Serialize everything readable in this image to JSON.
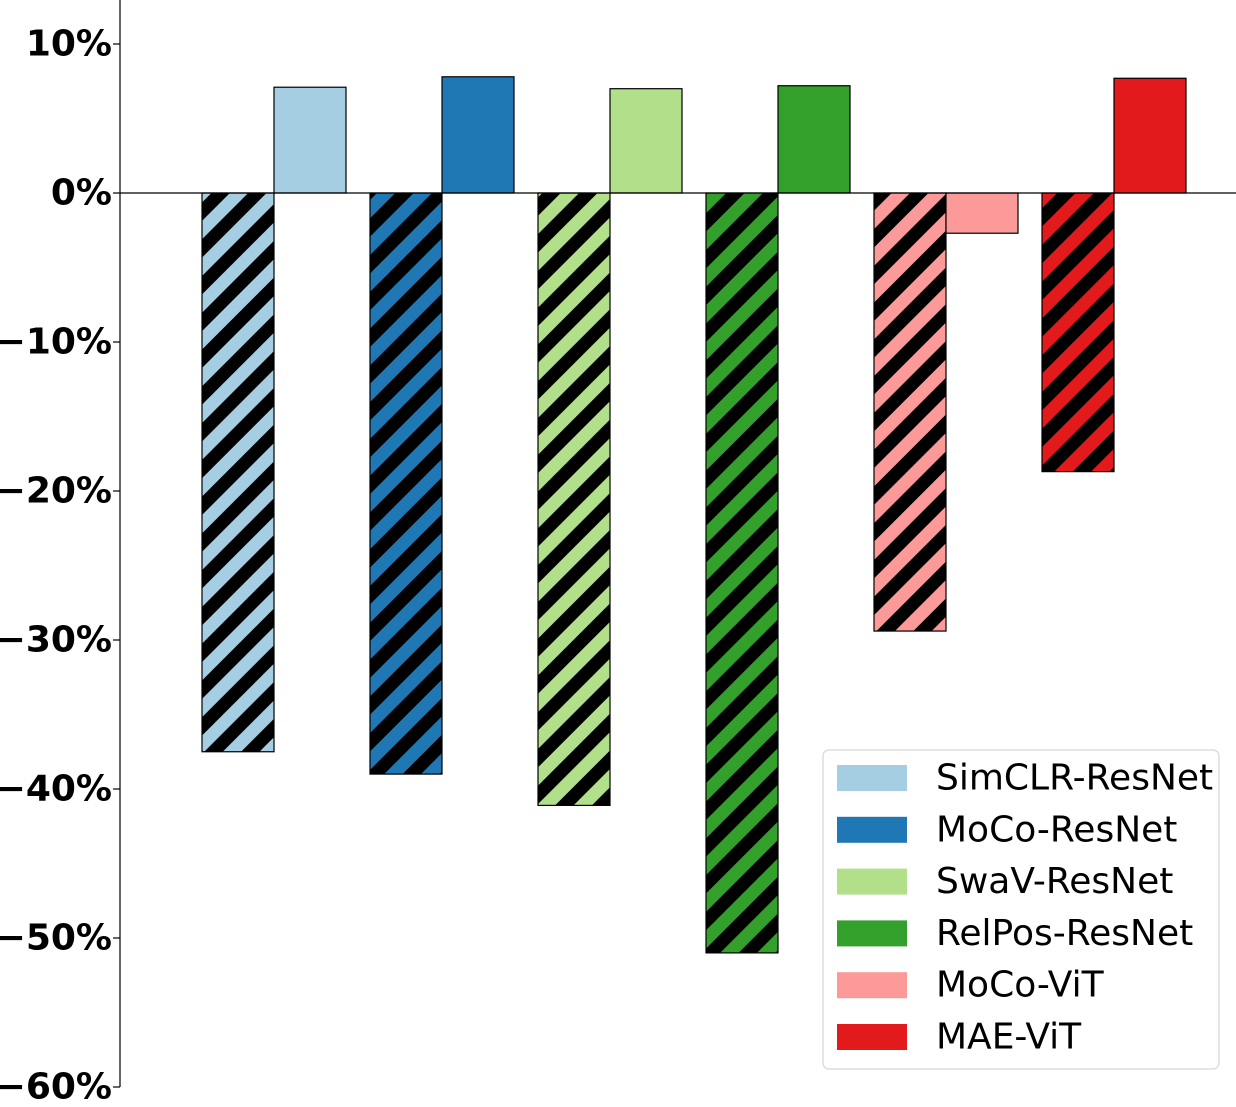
{
  "chart_data": {
    "type": "bar",
    "y_unit": "%",
    "ylim": [
      -60,
      13
    ],
    "y_ticks": [
      10,
      0,
      -10,
      -20,
      -30,
      -40,
      -50,
      -60
    ],
    "y_tick_labels": [
      "10%",
      "0%",
      "−10%",
      "−20%",
      "−30%",
      "−40%",
      "−50%",
      "−60%"
    ],
    "grid": false,
    "legend_placement": "bottom-right",
    "categories": [
      "SimCLR-ResNet",
      "MoCo-ResNet",
      "SwaV-ResNet",
      "RelPos-ResNet",
      "MoCo-ViT",
      "MAE-ViT"
    ],
    "colors": [
      "#a6cee3",
      "#1f78b4",
      "#b2df8a",
      "#33a02c",
      "#fb9a99",
      "#e31a1c"
    ],
    "series": [
      {
        "style": "hatched",
        "values": [
          -37.5,
          -39.0,
          -41.1,
          -51.0,
          -29.4,
          -18.7
        ]
      },
      {
        "style": "solid",
        "values": [
          7.1,
          7.8,
          7.0,
          7.2,
          -2.7,
          7.7
        ]
      }
    ]
  }
}
